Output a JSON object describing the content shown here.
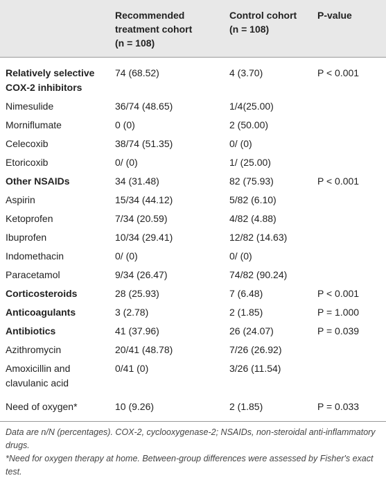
{
  "table": {
    "header": {
      "label": null,
      "recommended": {
        "title": "Recommended treatment cohort",
        "n": "(n = 108)"
      },
      "control": {
        "title": "Control cohort",
        "n": "(n = 108)"
      },
      "p_value": "P-value"
    },
    "rows": [
      {
        "label": "Relatively selective COX-2 inhibitors",
        "bold": true,
        "recommended": "74 (68.52)",
        "control": "4 (3.70)",
        "p_value": "P < 0.001"
      },
      {
        "label": "Nimesulide",
        "recommended": "36/74 (48.65)",
        "control": "1/4(25.00)"
      },
      {
        "label": "Morniflumate",
        "recommended": "0 (0)",
        "control": "2 (50.00)"
      },
      {
        "label": "Celecoxib",
        "recommended": "38/74 (51.35)",
        "control": "0/ (0)"
      },
      {
        "label": "Etoricoxib",
        "recommended": "0/ (0)",
        "control": "1/ (25.00)"
      },
      {
        "label": "Other NSAIDs",
        "bold": true,
        "recommended": "34 (31.48)",
        "control": "82 (75.93)",
        "p_value": "P < 0.001"
      },
      {
        "label": "Aspirin",
        "recommended": "15/34 (44.12)",
        "control": "5/82 (6.10)"
      },
      {
        "label": "Ketoprofen",
        "recommended": "7/34 (20.59)",
        "control": "4/82 (4.88)"
      },
      {
        "label": "Ibuprofen",
        "recommended": "10/34 (29.41)",
        "control": "12/82 (14.63)"
      },
      {
        "label": "Indomethacin",
        "recommended": "0/ (0)",
        "control": "0/ (0)"
      },
      {
        "label": "Paracetamol",
        "recommended": "9/34 (26.47)",
        "control": "74/82 (90.24)"
      },
      {
        "label": "Corticosteroids",
        "bold": true,
        "recommended": "28 (25.93)",
        "control": "7 (6.48)",
        "p_value": "P < 0.001"
      },
      {
        "label": "Anticoagulants",
        "bold": true,
        "recommended": "3 (2.78)",
        "control": "2 (1.85)",
        "p_value": "P = 1.000"
      },
      {
        "label": "Antibiotics",
        "bold": true,
        "recommended": "41 (37.96)",
        "control": "26 (24.07)",
        "p_value": "P = 0.039"
      },
      {
        "label": "Azithromycin",
        "recommended": "20/41 (48.78)",
        "control": "7/26 (26.92)"
      },
      {
        "label": "Amoxicillin and clavulanic acid",
        "recommended": "0/41 (0)",
        "control": "3/26 (11.54)"
      },
      {
        "label": "Need of oxygen*",
        "recommended": "10 (9.26)",
        "control": "2 (1.85)",
        "p_value": "P = 0.033"
      }
    ],
    "footnotes": [
      "Data are n/N (percentages). COX-2, cyclooxygenase-2; NSAIDs, non-steroidal anti-inflammatory drugs.",
      "*Need for oxygen therapy at home. Between-group differences were assessed by Fisher's exact test."
    ]
  }
}
